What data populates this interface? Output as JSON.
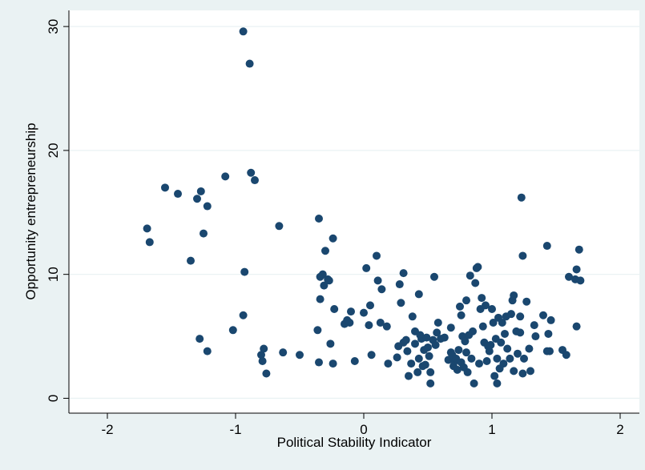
{
  "chart_data": {
    "type": "scatter",
    "xlabel": "Political Stability Indicator",
    "ylabel": "Opportunity entrepreneurship",
    "xlim": [
      -2.3,
      2.15
    ],
    "ylim": [
      -1.2,
      31.3
    ],
    "x_ticks": [
      -2,
      -1,
      0,
      1,
      2
    ],
    "x_tick_labels": [
      "-2",
      "-1",
      "0",
      "1",
      "2"
    ],
    "y_ticks": [
      0,
      10,
      20,
      30
    ],
    "y_tick_labels": [
      "0",
      "10",
      "20",
      "30"
    ],
    "grid": true,
    "legend": "none",
    "colors": {
      "marker": "#1a476f",
      "grid": "#eaf2f3",
      "plot_bg": "#ffffff",
      "page_bg": "#eaf2f3"
    },
    "series": [
      {
        "points": [
          [
            -1.69,
            13.7
          ],
          [
            -1.67,
            12.6
          ],
          [
            -1.55,
            17.0
          ],
          [
            -1.45,
            16.5
          ],
          [
            -1.35,
            11.1
          ],
          [
            -1.3,
            16.1
          ],
          [
            -1.28,
            4.8
          ],
          [
            -1.27,
            16.7
          ],
          [
            -1.25,
            13.3
          ],
          [
            -1.22,
            15.5
          ],
          [
            -1.22,
            3.8
          ],
          [
            -1.08,
            17.9
          ],
          [
            -1.02,
            5.5
          ],
          [
            -0.94,
            29.6
          ],
          [
            -0.94,
            6.7
          ],
          [
            -0.93,
            10.2
          ],
          [
            -0.89,
            27.0
          ],
          [
            -0.88,
            18.2
          ],
          [
            -0.85,
            17.6
          ],
          [
            -0.8,
            3.5
          ],
          [
            -0.79,
            3.0
          ],
          [
            -0.78,
            4.0
          ],
          [
            -0.76,
            2.0
          ],
          [
            -0.66,
            13.9
          ],
          [
            -0.63,
            3.7
          ],
          [
            -0.5,
            3.5
          ],
          [
            -0.36,
            5.5
          ],
          [
            -0.35,
            2.9
          ],
          [
            -0.35,
            14.5
          ],
          [
            -0.34,
            8.0
          ],
          [
            -0.34,
            9.8
          ],
          [
            -0.32,
            10.0
          ],
          [
            -0.31,
            9.1
          ],
          [
            -0.3,
            11.9
          ],
          [
            -0.28,
            9.6
          ],
          [
            -0.27,
            9.5
          ],
          [
            -0.26,
            4.4
          ],
          [
            -0.24,
            12.9
          ],
          [
            -0.24,
            2.8
          ],
          [
            -0.23,
            7.2
          ],
          [
            -0.15,
            6.0
          ],
          [
            -0.13,
            6.3
          ],
          [
            -0.11,
            6.1
          ],
          [
            -0.1,
            7.0
          ],
          [
            -0.07,
            3.0
          ],
          [
            0.0,
            6.9
          ],
          [
            0.02,
            10.5
          ],
          [
            0.04,
            5.9
          ],
          [
            0.05,
            7.5
          ],
          [
            0.06,
            3.5
          ],
          [
            0.1,
            11.5
          ],
          [
            0.11,
            9.5
          ],
          [
            0.13,
            6.1
          ],
          [
            0.14,
            8.8
          ],
          [
            0.18,
            5.8
          ],
          [
            0.19,
            2.8
          ],
          [
            0.26,
            3.3
          ],
          [
            0.27,
            4.2
          ],
          [
            0.28,
            9.2
          ],
          [
            0.29,
            7.7
          ],
          [
            0.31,
            10.1
          ],
          [
            0.31,
            4.5
          ],
          [
            0.33,
            4.7
          ],
          [
            0.34,
            3.8
          ],
          [
            0.35,
            1.8
          ],
          [
            0.37,
            2.8
          ],
          [
            0.38,
            6.6
          ],
          [
            0.4,
            4.4
          ],
          [
            0.4,
            5.4
          ],
          [
            0.42,
            2.1
          ],
          [
            0.43,
            3.2
          ],
          [
            0.43,
            8.4
          ],
          [
            0.44,
            5.1
          ],
          [
            0.45,
            4.8
          ],
          [
            0.46,
            2.6
          ],
          [
            0.47,
            3.9
          ],
          [
            0.48,
            2.7
          ],
          [
            0.49,
            4.9
          ],
          [
            0.5,
            4.1
          ],
          [
            0.51,
            3.4
          ],
          [
            0.52,
            2.1
          ],
          [
            0.52,
            1.2
          ],
          [
            0.54,
            4.7
          ],
          [
            0.55,
            9.8
          ],
          [
            0.56,
            4.3
          ],
          [
            0.57,
            5.3
          ],
          [
            0.58,
            6.1
          ],
          [
            0.6,
            4.8
          ],
          [
            0.63,
            4.9
          ],
          [
            0.66,
            3.1
          ],
          [
            0.68,
            5.7
          ],
          [
            0.68,
            3.7
          ],
          [
            0.69,
            3.5
          ],
          [
            0.7,
            2.6
          ],
          [
            0.71,
            3.0
          ],
          [
            0.72,
            3.2
          ],
          [
            0.73,
            2.3
          ],
          [
            0.74,
            3.9
          ],
          [
            0.75,
            7.4
          ],
          [
            0.76,
            2.9
          ],
          [
            0.76,
            6.7
          ],
          [
            0.77,
            5.0
          ],
          [
            0.78,
            2.5
          ],
          [
            0.79,
            4.6
          ],
          [
            0.8,
            3.7
          ],
          [
            0.8,
            7.9
          ],
          [
            0.81,
            2.1
          ],
          [
            0.82,
            5.1
          ],
          [
            0.83,
            9.9
          ],
          [
            0.84,
            3.2
          ],
          [
            0.85,
            5.4
          ],
          [
            0.86,
            1.2
          ],
          [
            0.87,
            9.3
          ],
          [
            0.88,
            10.5
          ],
          [
            0.89,
            10.6
          ],
          [
            0.9,
            2.8
          ],
          [
            0.91,
            7.2
          ],
          [
            0.92,
            8.1
          ],
          [
            0.93,
            5.8
          ],
          [
            0.94,
            4.5
          ],
          [
            0.95,
            7.5
          ],
          [
            0.96,
            3.0
          ],
          [
            0.97,
            4.2
          ],
          [
            0.98,
            3.8
          ],
          [
            0.99,
            4.3
          ],
          [
            1.0,
            7.2
          ],
          [
            1.01,
            6.1
          ],
          [
            1.02,
            1.8
          ],
          [
            1.03,
            4.8
          ],
          [
            1.04,
            3.2
          ],
          [
            1.04,
            1.2
          ],
          [
            1.05,
            6.5
          ],
          [
            1.06,
            2.4
          ],
          [
            1.07,
            4.5
          ],
          [
            1.08,
            6.1
          ],
          [
            1.09,
            2.8
          ],
          [
            1.1,
            5.2
          ],
          [
            1.11,
            6.6
          ],
          [
            1.12,
            4.0
          ],
          [
            1.14,
            3.2
          ],
          [
            1.15,
            6.8
          ],
          [
            1.16,
            7.9
          ],
          [
            1.17,
            2.2
          ],
          [
            1.17,
            8.3
          ],
          [
            1.19,
            5.4
          ],
          [
            1.2,
            3.6
          ],
          [
            1.22,
            6.6
          ],
          [
            1.22,
            5.3
          ],
          [
            1.23,
            16.2
          ],
          [
            1.24,
            11.5
          ],
          [
            1.24,
            2.0
          ],
          [
            1.25,
            3.2
          ],
          [
            1.27,
            7.8
          ],
          [
            1.29,
            4.0
          ],
          [
            1.3,
            2.2
          ],
          [
            1.33,
            5.9
          ],
          [
            1.34,
            5.0
          ],
          [
            1.4,
            6.7
          ],
          [
            1.43,
            12.3
          ],
          [
            1.43,
            3.8
          ],
          [
            1.44,
            5.2
          ],
          [
            1.45,
            3.8
          ],
          [
            1.46,
            6.3
          ],
          [
            1.55,
            3.9
          ],
          [
            1.58,
            3.5
          ],
          [
            1.6,
            9.8
          ],
          [
            1.65,
            9.6
          ],
          [
            1.66,
            10.4
          ],
          [
            1.66,
            5.8
          ],
          [
            1.68,
            12.0
          ],
          [
            1.69,
            9.5
          ]
        ]
      }
    ]
  }
}
